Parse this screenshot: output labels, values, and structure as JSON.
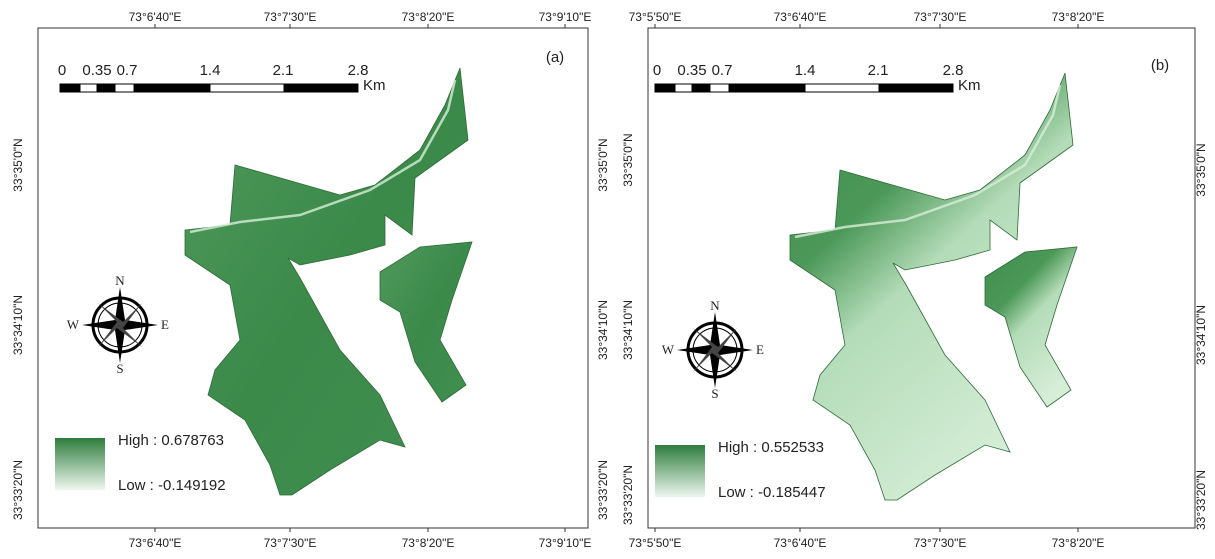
{
  "panels": [
    {
      "label": "(a)",
      "top_ticks": [
        "73°6'40\"E",
        "73°7'30\"E",
        "73°8'20\"E",
        "73°9'10\"E"
      ],
      "bottom_ticks": [
        "73°6'40\"E",
        "73°7'30\"E",
        "73°8'20\"E",
        "73°9'10\"E"
      ],
      "left_ticks": [
        "33°35'0\"N",
        "33°34'10\"N",
        "33°33'20\"N"
      ],
      "right_ticks": [
        "33°35'0\"N",
        "33°34'10\"N",
        "33°33'20\"N"
      ],
      "scale": [
        "0",
        "0.35",
        "0.7",
        "1.4",
        "2.1",
        "2.8"
      ],
      "scale_unit": "Km",
      "compass": [
        "N",
        "E",
        "S",
        "W"
      ],
      "legend_high": "High : 0.678763",
      "legend_low": "Low : -0.149192"
    },
    {
      "label": "(b)",
      "top_ticks": [
        "73°5'50\"E",
        "73°6'40\"E",
        "73°7'30\"E",
        "73°8'20\"E"
      ],
      "bottom_ticks": [
        "73°5'50\"E",
        "73°6'40\"E",
        "73°7'30\"E",
        "73°8'20\"E"
      ],
      "left_ticks": [
        "33°35'0\"N",
        "33°34'10\"N",
        "33°33'20\"N"
      ],
      "right_ticks": [
        "33°35'0\"N",
        "33°34'10\"N",
        "33°33'20\"N"
      ],
      "scale": [
        "0",
        "0.35",
        "0.7",
        "1.4",
        "2.1",
        "2.8"
      ],
      "scale_unit": "Km",
      "compass": [
        "N",
        "E",
        "S",
        "W"
      ],
      "legend_high": "High : 0.552533",
      "legend_low": "Low : -0.185447"
    }
  ]
}
